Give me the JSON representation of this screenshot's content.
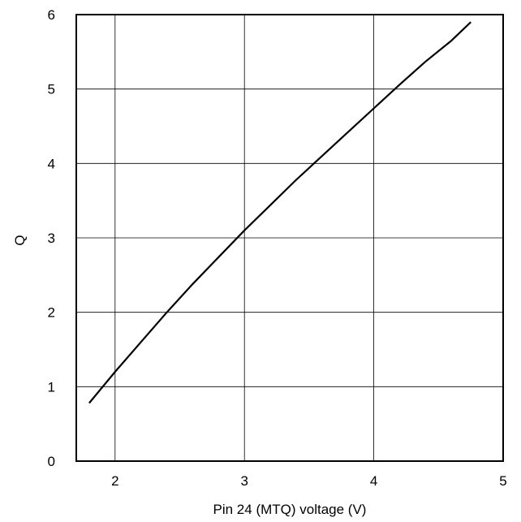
{
  "chart_data": {
    "type": "line",
    "title": "",
    "xlabel": "Pin 24 (MTQ) voltage (V)",
    "ylabel": "Q",
    "xlim": [
      1.7,
      5
    ],
    "ylim": [
      0,
      6
    ],
    "xticks": [
      2,
      3,
      4,
      5
    ],
    "yticks": [
      0,
      1,
      2,
      3,
      4,
      5,
      6
    ],
    "grid": true,
    "legend": "none",
    "line_color": "#000000",
    "series": [
      {
        "x": [
          1.8,
          2.0,
          2.2,
          2.4,
          2.6,
          2.8,
          3.0,
          3.2,
          3.4,
          3.6,
          3.8,
          4.0,
          4.2,
          4.4,
          4.6,
          4.75
        ],
        "y": [
          0.78,
          1.2,
          1.6,
          2.0,
          2.38,
          2.74,
          3.1,
          3.44,
          3.78,
          4.1,
          4.42,
          4.74,
          5.06,
          5.37,
          5.65,
          5.9
        ]
      }
    ]
  }
}
